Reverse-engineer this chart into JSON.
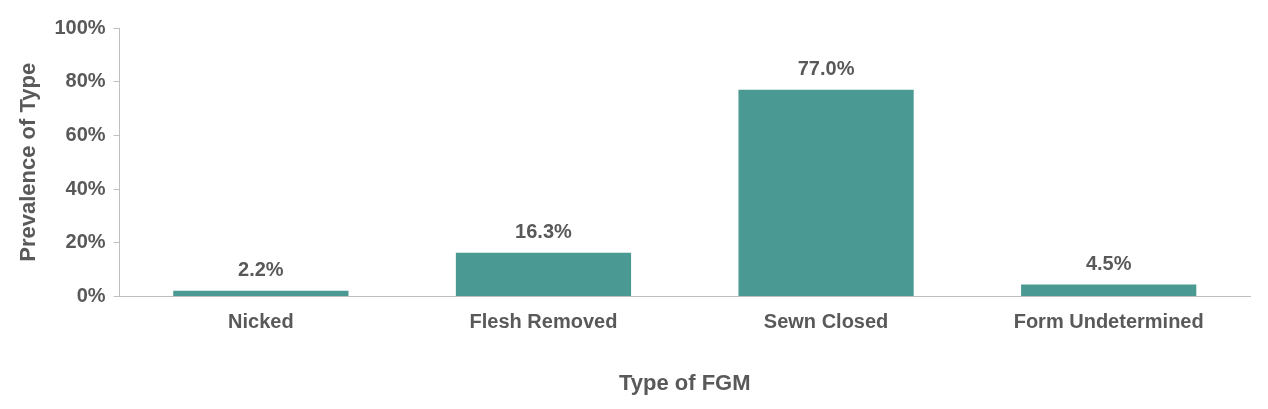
{
  "chart_data": {
    "type": "bar",
    "xlabel": "Type of FGM",
    "ylabel": "Prevalence of Type",
    "categories": [
      "Nicked",
      "Flesh Removed",
      "Sewn Closed",
      "Form Undetermined"
    ],
    "values": [
      2.2,
      16.3,
      77.0,
      4.5
    ],
    "color": "#4a9a93",
    "value_labels": [
      "2.2%",
      "16.3%",
      "77.0%",
      "4.5%"
    ],
    "ylim": [
      0,
      100
    ],
    "yticks": [
      {
        "value": 0,
        "label": "0%"
      },
      {
        "value": 20,
        "label": "20%"
      },
      {
        "value": 40,
        "label": "40%"
      },
      {
        "value": 60,
        "label": "60%"
      },
      {
        "value": 80,
        "label": "80%"
      },
      {
        "value": 100,
        "label": "100%"
      }
    ],
    "grid": false,
    "legend": false
  }
}
